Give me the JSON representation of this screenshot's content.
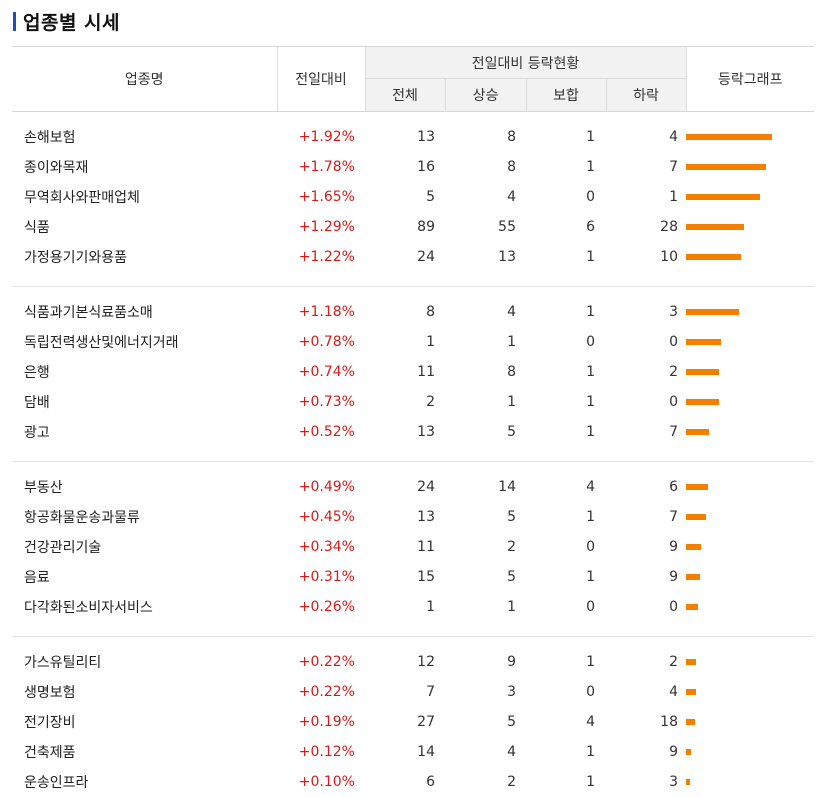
{
  "title": "업종별 시세",
  "header": {
    "name": "업종명",
    "change": "전일대비",
    "group": "전일대비 등락현황",
    "total": "전체",
    "up": "상승",
    "flat": "보합",
    "down": "하락",
    "graph": "등락그래프"
  },
  "groups": [
    [
      {
        "name": "손해보험",
        "change": "+1.92%",
        "total": "13",
        "up": "8",
        "flat": "1",
        "down": "4",
        "pct": 1.92
      },
      {
        "name": "종이와목재",
        "change": "+1.78%",
        "total": "16",
        "up": "8",
        "flat": "1",
        "down": "7",
        "pct": 1.78
      },
      {
        "name": "무역회사와판매업체",
        "change": "+1.65%",
        "total": "5",
        "up": "4",
        "flat": "0",
        "down": "1",
        "pct": 1.65
      },
      {
        "name": "식품",
        "change": "+1.29%",
        "total": "89",
        "up": "55",
        "flat": "6",
        "down": "28",
        "pct": 1.29
      },
      {
        "name": "가정용기기와용품",
        "change": "+1.22%",
        "total": "24",
        "up": "13",
        "flat": "1",
        "down": "10",
        "pct": 1.22
      }
    ],
    [
      {
        "name": "식품과기본식료품소매",
        "change": "+1.18%",
        "total": "8",
        "up": "4",
        "flat": "1",
        "down": "3",
        "pct": 1.18
      },
      {
        "name": "독립전력생산및에너지거래",
        "change": "+0.78%",
        "total": "1",
        "up": "1",
        "flat": "0",
        "down": "0",
        "pct": 0.78
      },
      {
        "name": "은행",
        "change": "+0.74%",
        "total": "11",
        "up": "8",
        "flat": "1",
        "down": "2",
        "pct": 0.74
      },
      {
        "name": "담배",
        "change": "+0.73%",
        "total": "2",
        "up": "1",
        "flat": "1",
        "down": "0",
        "pct": 0.73
      },
      {
        "name": "광고",
        "change": "+0.52%",
        "total": "13",
        "up": "5",
        "flat": "1",
        "down": "7",
        "pct": 0.52
      }
    ],
    [
      {
        "name": "부동산",
        "change": "+0.49%",
        "total": "24",
        "up": "14",
        "flat": "4",
        "down": "6",
        "pct": 0.49
      },
      {
        "name": "항공화물운송과물류",
        "change": "+0.45%",
        "total": "13",
        "up": "5",
        "flat": "1",
        "down": "7",
        "pct": 0.45
      },
      {
        "name": "건강관리기술",
        "change": "+0.34%",
        "total": "11",
        "up": "2",
        "flat": "0",
        "down": "9",
        "pct": 0.34
      },
      {
        "name": "음료",
        "change": "+0.31%",
        "total": "15",
        "up": "5",
        "flat": "1",
        "down": "9",
        "pct": 0.31
      },
      {
        "name": "다각화된소비자서비스",
        "change": "+0.26%",
        "total": "1",
        "up": "1",
        "flat": "0",
        "down": "0",
        "pct": 0.26
      }
    ],
    [
      {
        "name": "가스유틸리티",
        "change": "+0.22%",
        "total": "12",
        "up": "9",
        "flat": "1",
        "down": "2",
        "pct": 0.22
      },
      {
        "name": "생명보험",
        "change": "+0.22%",
        "total": "7",
        "up": "3",
        "flat": "0",
        "down": "4",
        "pct": 0.22
      },
      {
        "name": "전기장비",
        "change": "+0.19%",
        "total": "27",
        "up": "5",
        "flat": "4",
        "down": "18",
        "pct": 0.19
      },
      {
        "name": "건축제품",
        "change": "+0.12%",
        "total": "14",
        "up": "4",
        "flat": "1",
        "down": "9",
        "pct": 0.12
      },
      {
        "name": "운송인프라",
        "change": "+0.10%",
        "total": "6",
        "up": "2",
        "flat": "1",
        "down": "3",
        "pct": 0.1
      }
    ]
  ],
  "colors": {
    "bar": "#f27f00",
    "positive": "#d21c1c",
    "title_mark": "#1f4fb5"
  }
}
